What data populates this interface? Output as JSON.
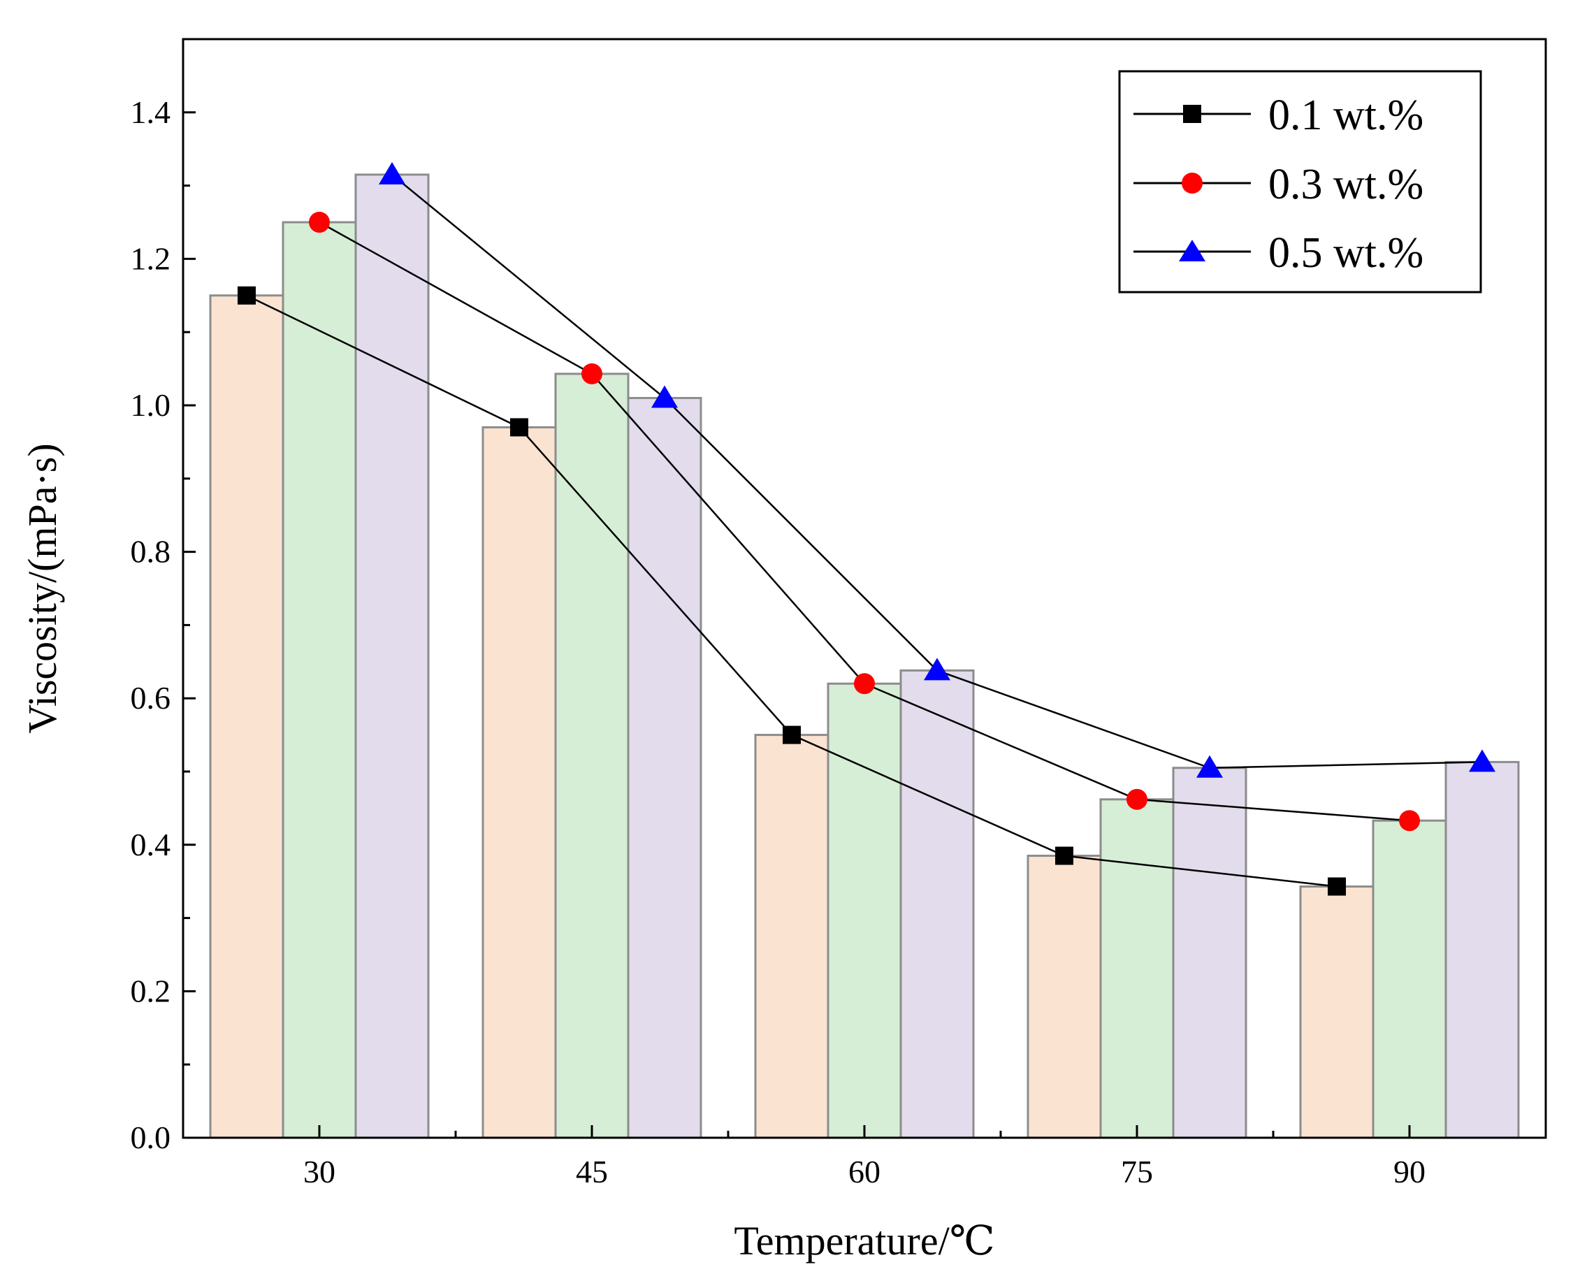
{
  "chart_data": {
    "type": "bar",
    "title": "",
    "xlabel": "Temperature/℃",
    "ylabel": "Viscosity/(mPa·s)",
    "categories": [
      "30",
      "45",
      "60",
      "75",
      "90"
    ],
    "ylim": [
      0.0,
      1.5
    ],
    "yticks": [
      "0.0",
      "0.2",
      "0.4",
      "0.6",
      "0.8",
      "1.0",
      "1.2",
      "1.4"
    ],
    "grid": false,
    "legend_position": "top-right",
    "series": [
      {
        "name": "0.1 wt.%",
        "values": [
          1.15,
          0.97,
          0.55,
          0.385,
          0.343
        ],
        "bar_color": "#fbe3d2",
        "marker": "square",
        "marker_color": "#000000"
      },
      {
        "name": "0.3 wt.%",
        "values": [
          1.25,
          1.043,
          0.62,
          0.462,
          0.433
        ],
        "bar_color": "#d6eed6",
        "marker": "circle",
        "marker_color": "#ff0000"
      },
      {
        "name": "0.5 wt.%",
        "values": [
          1.315,
          1.01,
          0.638,
          0.505,
          0.513
        ],
        "bar_color": "#e2dcec",
        "marker": "triangle",
        "marker_color": "#0000ff"
      }
    ]
  }
}
